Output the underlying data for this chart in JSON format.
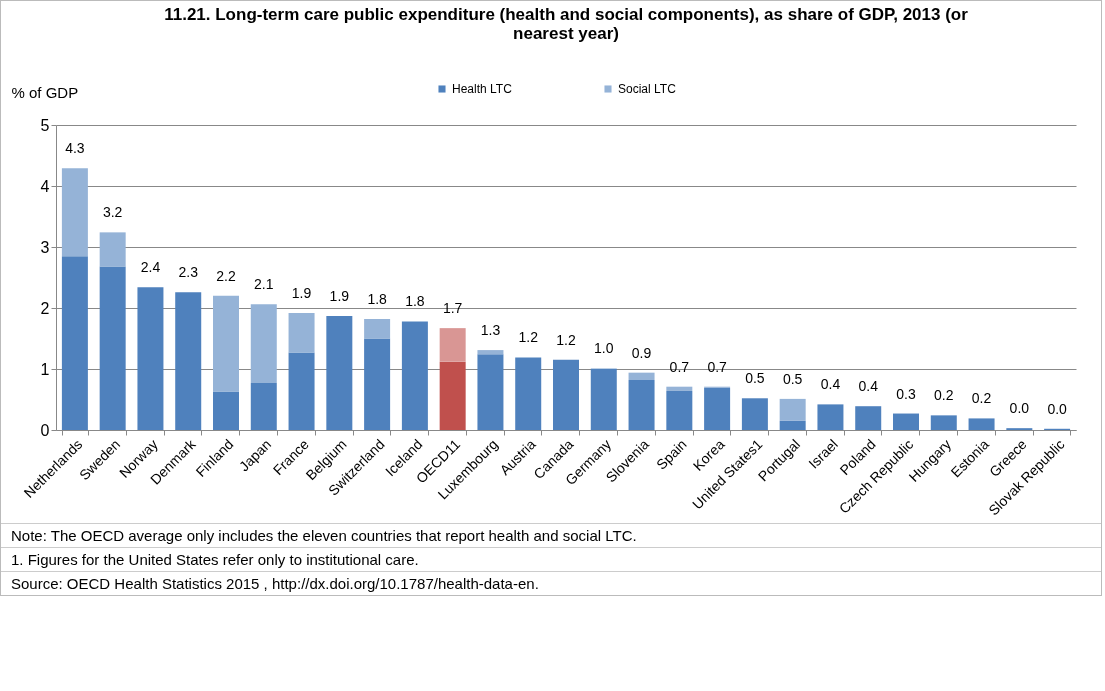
{
  "chart_data": {
    "type": "bar",
    "title": "11.21. Long-term care public expenditure (health and social components), as share of GDP, 2013 (or nearest year)",
    "ylabel": "% of GDP",
    "categories": [
      "Netherlands",
      "Sweden",
      "Norway",
      "Denmark",
      "Finland",
      "Japan",
      "France",
      "Belgium",
      "Switzerland",
      "Iceland",
      "OECD11",
      "Luxembourg",
      "Austria",
      "Canada",
      "Germany",
      "Slovenia",
      "Spain",
      "Korea",
      "United States1",
      "Portugal",
      "Israel",
      "Poland",
      "Czech Republic",
      "Hungary",
      "Estonia",
      "Greece",
      "Slovak Republic"
    ],
    "stacked": true,
    "series": [
      {
        "name": "Health LTC",
        "color": "#4f81bd",
        "colors": [
          "#4f81bd",
          "#4f81bd",
          "#4f81bd",
          "#4f81bd",
          "#4f81bd",
          "#4f81bd",
          "#4f81bd",
          "#4f81bd",
          "#4f81bd",
          "#4f81bd",
          "#c0504d",
          "#4f81bd",
          "#4f81bd",
          "#4f81bd",
          "#4f81bd",
          "#4f81bd",
          "#4f81bd",
          "#4f81bd",
          "#4f81bd",
          "#4f81bd",
          "#4f81bd",
          "#4f81bd",
          "#4f81bd",
          "#4f81bd",
          "#4f81bd",
          "#4f81bd",
          "#4f81bd"
        ],
        "values": [
          2.85,
          2.68,
          2.34,
          2.26,
          0.63,
          0.77,
          1.27,
          1.87,
          1.5,
          1.78,
          1.12,
          1.24,
          1.19,
          1.15,
          1.0,
          0.82,
          0.64,
          0.69,
          0.52,
          0.15,
          0.42,
          0.39,
          0.27,
          0.24,
          0.19,
          0.03,
          0.02
        ]
      },
      {
        "name": "Social LTC",
        "color": "#95b3d7",
        "colors": [
          "#95b3d7",
          "#95b3d7",
          "#95b3d7",
          "#95b3d7",
          "#95b3d7",
          "#95b3d7",
          "#95b3d7",
          "#95b3d7",
          "#95b3d7",
          "#95b3d7",
          "#d99694",
          "#95b3d7",
          "#95b3d7",
          "#95b3d7",
          "#95b3d7",
          "#95b3d7",
          "#95b3d7",
          "#95b3d7",
          "#95b3d7",
          "#95b3d7",
          "#95b3d7",
          "#95b3d7",
          "#95b3d7",
          "#95b3d7",
          "#95b3d7",
          "#95b3d7",
          "#95b3d7"
        ],
        "values": [
          1.44,
          0.56,
          0,
          0,
          1.57,
          1.29,
          0.65,
          0,
          0.32,
          0,
          0.55,
          0.07,
          0,
          0,
          0.01,
          0.12,
          0.07,
          0.02,
          0,
          0.36,
          0,
          0,
          0,
          0,
          0,
          0,
          0
        ]
      }
    ],
    "totals": [
      "4.3",
      "3.2",
      "2.4",
      "2.3",
      "2.2",
      "2.1",
      "1.9",
      "1.9",
      "1.8",
      "1.8",
      "1.7",
      "1.3",
      "1.2",
      "1.2",
      "1.0",
      "0.9",
      "0.7",
      "0.7",
      "0.5",
      "0.5",
      "0.4",
      "0.4",
      "0.3",
      "0.2",
      "0.2",
      "0.0",
      "0.0"
    ],
    "ylim": [
      0,
      5
    ],
    "yticks": [
      0,
      1,
      2,
      3,
      4,
      5
    ],
    "grid": "y",
    "legend": "top",
    "annotations": [
      "Note: The OECD average only includes the eleven countries that report health and social LTC.",
      "1. Figures for the United States refer only to institutional care.",
      "Source: OECD Health Statistics 2015 , http://dx.doi.org/10.1787/health-data-en."
    ]
  }
}
